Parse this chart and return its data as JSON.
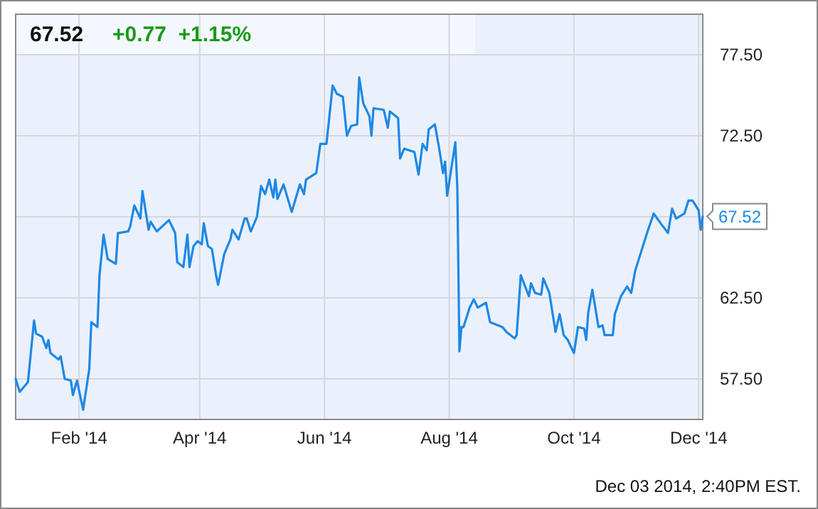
{
  "chart_data": {
    "type": "line",
    "title": "67.52",
    "subtitle": "+0.77  +1.15%",
    "annotations": [
      {
        "text": "67.52",
        "x": "2014-12-03",
        "y": 67.52
      },
      "Dec 03 2014, 2:40PM EST."
    ],
    "xlim": [
      "2014-01-01",
      "2014-12-03"
    ],
    "xticks": [
      {
        "value": "2014-02-01",
        "label": "Feb '14"
      },
      {
        "value": "2014-04-01",
        "label": "Apr '14"
      },
      {
        "value": "2014-06-01",
        "label": "Jun '14"
      },
      {
        "value": "2014-08-01",
        "label": "Aug '14"
      },
      {
        "value": "2014-10-01",
        "label": "Oct '14"
      },
      {
        "value": "2014-12-01",
        "label": "Dec '14"
      }
    ],
    "ylim": [
      55,
      80
    ],
    "yticks": [
      {
        "value": 57.5,
        "label": "57.50"
      },
      {
        "value": 62.5,
        "label": "62.50"
      },
      {
        "value": 67.5,
        "label": null
      },
      {
        "value": 72.5,
        "label": "72.50"
      },
      {
        "value": 77.5,
        "label": "77.50"
      }
    ],
    "grid": true,
    "marker": "none",
    "line_style": "solid",
    "x": [
      "2014-01-01",
      "2014-01-03",
      "2014-01-07",
      "2014-01-10",
      "2014-01-11",
      "2014-01-14",
      "2014-01-16",
      "2014-01-17",
      "2014-01-18",
      "2014-01-22",
      "2014-01-23",
      "2014-01-25",
      "2014-01-28",
      "2014-01-29",
      "2014-01-31",
      "2014-02-03",
      "2014-02-06",
      "2014-02-07",
      "2014-02-10",
      "2014-02-11",
      "2014-02-13",
      "2014-02-15",
      "2014-02-19",
      "2014-02-20",
      "2014-02-25",
      "2014-02-26",
      "2014-02-28",
      "2014-03-03",
      "2014-03-04",
      "2014-03-07",
      "2014-03-08",
      "2014-03-11",
      "2014-03-17",
      "2014-03-20",
      "2014-03-21",
      "2014-03-24",
      "2014-03-26",
      "2014-03-27",
      "2014-03-29",
      "2014-03-31",
      "2014-04-02",
      "2014-04-03",
      "2014-04-05",
      "2014-04-07",
      "2014-04-09",
      "2014-04-10",
      "2014-04-13",
      "2014-04-16",
      "2014-04-17",
      "2014-04-20",
      "2014-04-23",
      "2014-04-24",
      "2014-04-26",
      "2014-04-29",
      "2014-05-01",
      "2014-05-03",
      "2014-05-05",
      "2014-05-07",
      "2014-05-08",
      "2014-05-09",
      "2014-05-12",
      "2014-05-16",
      "2014-05-20",
      "2014-05-22",
      "2014-05-23",
      "2014-05-28",
      "2014-05-30",
      "2014-06-02",
      "2014-06-05",
      "2014-06-07",
      "2014-06-10",
      "2014-06-12",
      "2014-06-14",
      "2014-06-17",
      "2014-06-18",
      "2014-06-20",
      "2014-06-23",
      "2014-06-24",
      "2014-06-25",
      "2014-06-30",
      "2014-07-02",
      "2014-07-03",
      "2014-07-07",
      "2014-07-08",
      "2014-07-10",
      "2014-07-15",
      "2014-07-17",
      "2014-07-19",
      "2014-07-21",
      "2014-07-22",
      "2014-07-25",
      "2014-07-27",
      "2014-07-29",
      "2014-07-30",
      "2014-07-31",
      "2014-08-04",
      "2014-08-05",
      "2014-08-06",
      "2014-08-07",
      "2014-08-08",
      "2014-08-11",
      "2014-08-13",
      "2014-08-15",
      "2014-08-19",
      "2014-08-21",
      "2014-08-25",
      "2014-08-27",
      "2014-08-29",
      "2014-09-02",
      "2014-09-03",
      "2014-09-05",
      "2014-09-09",
      "2014-09-10",
      "2014-09-12",
      "2014-09-15",
      "2014-09-16",
      "2014-09-19",
      "2014-09-22",
      "2014-09-24",
      "2014-09-26",
      "2014-09-28",
      "2014-10-01",
      "2014-10-03",
      "2014-10-06",
      "2014-10-07",
      "2014-10-08",
      "2014-10-10",
      "2014-10-13",
      "2014-10-15",
      "2014-10-16",
      "2014-10-20",
      "2014-10-21",
      "2014-10-24",
      "2014-10-27",
      "2014-10-29",
      "2014-10-31",
      "2014-11-03",
      "2014-11-06",
      "2014-11-09",
      "2014-11-13",
      "2014-11-16",
      "2014-11-18",
      "2014-11-20",
      "2014-11-24",
      "2014-11-26",
      "2014-11-28",
      "2014-12-01",
      "2014-12-02",
      "2014-12-03"
    ],
    "series": [
      {
        "color": "#1e88e5",
        "values": [
          57.5,
          56.7,
          57.3,
          61.1,
          60.3,
          60.1,
          59.4,
          59.9,
          59.1,
          58.7,
          58.9,
          57.5,
          57.4,
          56.5,
          57.4,
          55.6,
          58.1,
          61.0,
          60.7,
          63.9,
          66.4,
          64.9,
          64.6,
          66.5,
          66.6,
          66.9,
          68.2,
          67.4,
          69.1,
          66.7,
          67.2,
          66.6,
          67.3,
          66.5,
          64.7,
          64.4,
          66.4,
          64.4,
          65.7,
          66.0,
          65.8,
          67.1,
          65.7,
          65.5,
          63.9,
          63.3,
          65.2,
          66.1,
          66.7,
          66.1,
          67.4,
          67.4,
          66.6,
          67.5,
          69.4,
          68.9,
          69.8,
          68.7,
          69.8,
          68.6,
          69.5,
          67.8,
          69.5,
          68.9,
          69.8,
          70.2,
          72.0,
          72.0,
          75.6,
          75.1,
          74.9,
          72.5,
          73.1,
          73.2,
          76.1,
          74.5,
          73.7,
          72.5,
          74.2,
          74.1,
          73.0,
          74.0,
          73.6,
          71.1,
          71.7,
          71.5,
          70.1,
          72.0,
          71.6,
          72.9,
          73.2,
          71.8,
          70.2,
          70.9,
          68.8,
          72.1,
          69.2,
          59.2,
          60.7,
          60.7,
          61.9,
          62.4,
          61.9,
          62.2,
          61.0,
          60.8,
          60.7,
          60.4,
          60.0,
          60.2,
          63.9,
          62.6,
          63.4,
          62.8,
          62.7,
          63.7,
          62.8,
          60.4,
          61.5,
          60.2,
          59.9,
          59.1,
          60.7,
          60.6,
          59.9,
          61.6,
          63.0,
          60.7,
          60.8,
          60.2,
          60.2,
          61.5,
          62.6,
          63.2,
          62.8,
          64.2,
          65.4,
          66.6,
          67.7,
          67.0,
          66.5,
          68.0,
          67.4,
          67.7,
          68.5,
          68.5,
          67.9,
          66.7,
          67.52
        ]
      }
    ]
  }
}
